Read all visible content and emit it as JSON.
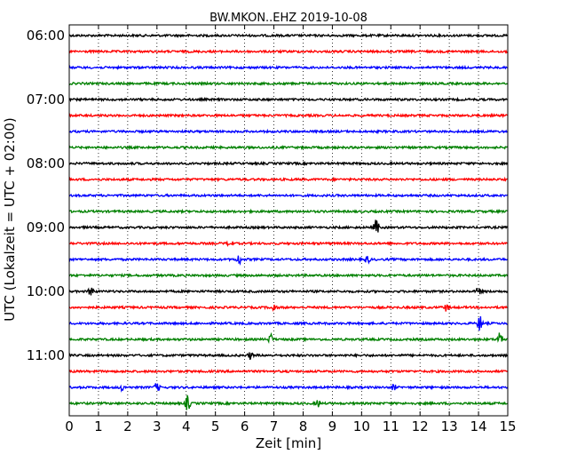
{
  "chart_data": {
    "type": "line",
    "title": "BW.MKON..EHZ 2019-10-08",
    "xlabel": "Zeit  [min]",
    "ylabel": "UTC (Lokalzeit = UTC + 02:00)",
    "xlim": [
      0,
      15
    ],
    "x_ticks": [
      "0",
      "1",
      "2",
      "3",
      "4",
      "5",
      "6",
      "7",
      "8",
      "9",
      "10",
      "11",
      "12",
      "13",
      "14",
      "15"
    ],
    "y_ticks": [
      "06:00",
      "07:00",
      "08:00",
      "09:00",
      "10:00",
      "11:00"
    ],
    "grid": "vertical-dotted",
    "colors": [
      "#000000",
      "#ff0000",
      "#0000ff",
      "#008000"
    ],
    "trace_start_times": [
      "06:00",
      "06:15",
      "06:30",
      "06:45",
      "07:00",
      "07:15",
      "07:30",
      "07:45",
      "08:00",
      "08:15",
      "08:30",
      "08:45",
      "09:00",
      "09:15",
      "09:30",
      "09:45",
      "10:00",
      "10:15",
      "10:30",
      "10:45",
      "11:00",
      "11:15",
      "11:30",
      "11:45"
    ],
    "events": [
      {
        "trace": 12,
        "x": 10.5,
        "amp": 1.2
      },
      {
        "trace": 13,
        "x": 5.5,
        "amp": 0.5
      },
      {
        "trace": 14,
        "x": 5.8,
        "amp": 0.7
      },
      {
        "trace": 14,
        "x": 10.2,
        "amp": 0.5
      },
      {
        "trace": 16,
        "x": 0.75,
        "amp": 0.7
      },
      {
        "trace": 16,
        "x": 14.0,
        "amp": 0.6
      },
      {
        "trace": 17,
        "x": 7.0,
        "amp": 0.5
      },
      {
        "trace": 17,
        "x": 12.9,
        "amp": 0.5
      },
      {
        "trace": 18,
        "x": 14.05,
        "amp": 1.1
      },
      {
        "trace": 19,
        "x": 6.9,
        "amp": 0.7
      },
      {
        "trace": 19,
        "x": 14.75,
        "amp": 1.4
      },
      {
        "trace": 20,
        "x": 6.2,
        "amp": 0.5
      },
      {
        "trace": 22,
        "x": 3.0,
        "amp": 0.6
      },
      {
        "trace": 22,
        "x": 1.8,
        "amp": 0.4
      },
      {
        "trace": 22,
        "x": 11.1,
        "amp": 0.4
      },
      {
        "trace": 23,
        "x": 4.05,
        "amp": 1.1
      },
      {
        "trace": 23,
        "x": 8.5,
        "amp": 0.5
      }
    ]
  }
}
